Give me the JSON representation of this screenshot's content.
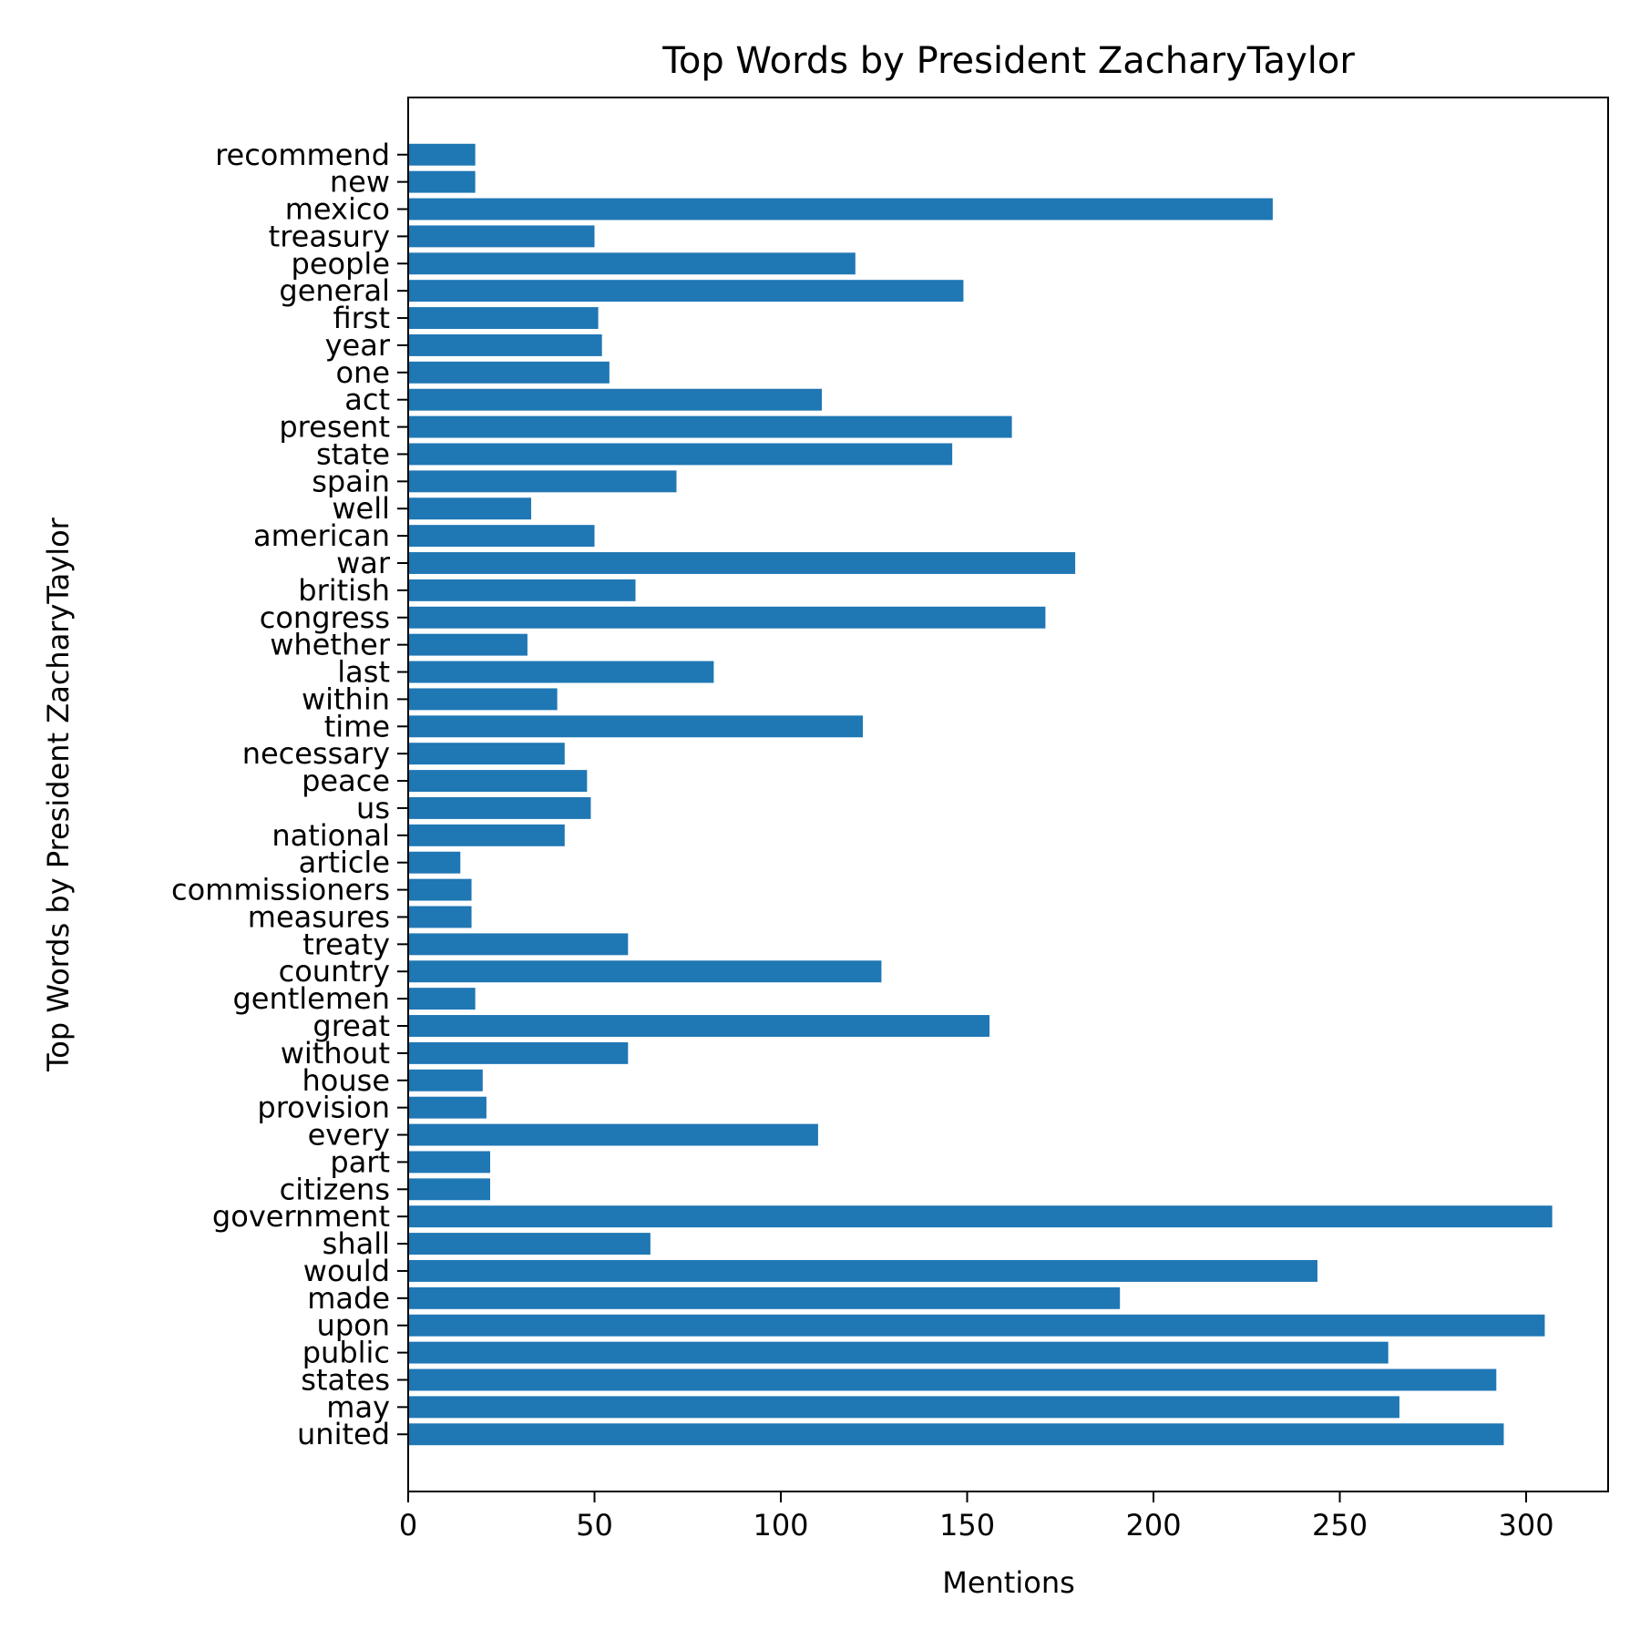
{
  "chart_data": {
    "type": "bar",
    "orientation": "horizontal",
    "title": "Top Words by President ZacharyTaylor",
    "xlabel": "Mentions",
    "ylabel": "Top Words by President ZacharyTaylor",
    "xlim": [
      0,
      322
    ],
    "xticks": [
      0,
      50,
      100,
      150,
      200,
      250,
      300
    ],
    "grid": false,
    "bar_color": "#1f77b4",
    "categories": [
      "united",
      "may",
      "states",
      "public",
      "upon",
      "made",
      "would",
      "shall",
      "government",
      "citizens",
      "part",
      "every",
      "provision",
      "house",
      "without",
      "great",
      "gentlemen",
      "country",
      "treaty",
      "measures",
      "commissioners",
      "article",
      "national",
      "us",
      "peace",
      "necessary",
      "time",
      "within",
      "last",
      "whether",
      "congress",
      "british",
      "war",
      "american",
      "well",
      "spain",
      "state",
      "present",
      "act",
      "one",
      "year",
      "first",
      "general",
      "people",
      "treasury",
      "mexico",
      "new",
      "recommend"
    ],
    "values": [
      294,
      266,
      292,
      263,
      305,
      191,
      244,
      65,
      307,
      22,
      22,
      110,
      21,
      20,
      59,
      156,
      18,
      127,
      59,
      17,
      17,
      14,
      42,
      49,
      48,
      42,
      122,
      40,
      82,
      32,
      171,
      61,
      179,
      50,
      33,
      72,
      146,
      162,
      111,
      54,
      52,
      51,
      149,
      120,
      50,
      232,
      18,
      18
    ]
  }
}
